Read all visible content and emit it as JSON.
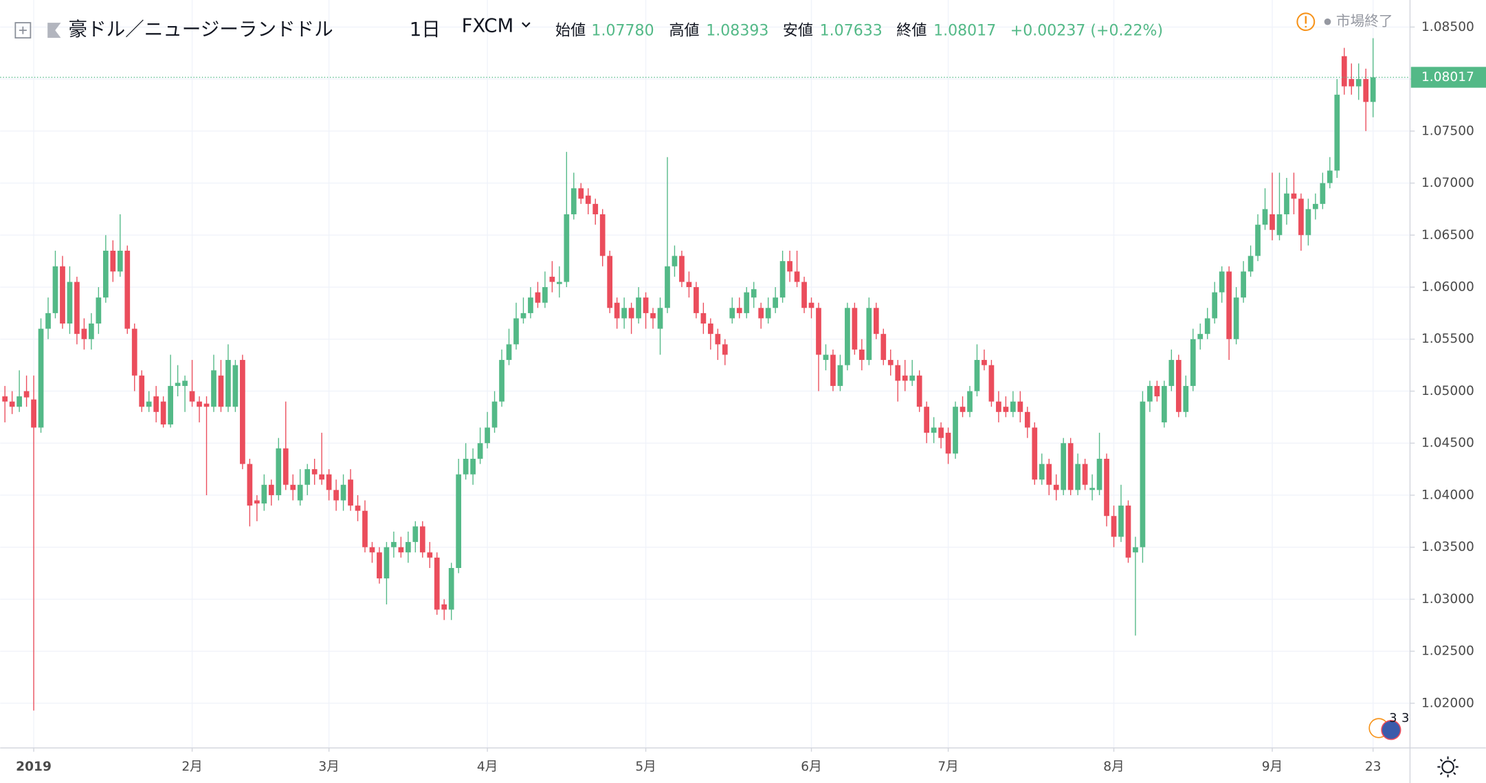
{
  "chart_data": {
    "type": "candlestick",
    "title": "豪ドル／ニュージーランドドル",
    "interval": "1日",
    "source": "FXCM",
    "header": {
      "open_label": "始値",
      "open": "1.07780",
      "high_label": "高値",
      "high": "1.08393",
      "low_label": "安値",
      "low": "1.07633",
      "close_label": "終値",
      "close": "1.08017",
      "change": "+0.00237 (+0.22%)"
    },
    "status": "市場終了",
    "event_badges": [
      "3",
      "3"
    ],
    "up_color": "#53b987",
    "down_color": "#eb4d5c",
    "grid": true,
    "ylim": [
      1.0157,
      1.0876
    ],
    "yticks": [
      {
        "value": 1.02,
        "label": "1.02000"
      },
      {
        "value": 1.025,
        "label": "1.02500"
      },
      {
        "value": 1.03,
        "label": "1.03000"
      },
      {
        "value": 1.035,
        "label": "1.03500"
      },
      {
        "value": 1.04,
        "label": "1.04000"
      },
      {
        "value": 1.045,
        "label": "1.04500"
      },
      {
        "value": 1.05,
        "label": "1.05000"
      },
      {
        "value": 1.055,
        "label": "1.05500"
      },
      {
        "value": 1.06,
        "label": "1.06000"
      },
      {
        "value": 1.065,
        "label": "1.06500"
      },
      {
        "value": 1.07,
        "label": "1.07000"
      },
      {
        "value": 1.075,
        "label": "1.07500"
      },
      {
        "value": 1.08,
        "label": "1.08000"
      },
      {
        "value": 1.085,
        "label": "1.08500"
      }
    ],
    "categories": [
      null,
      null,
      null,
      null,
      "2019",
      null,
      null,
      null,
      null,
      null,
      null,
      null,
      null,
      null,
      null,
      null,
      null,
      null,
      null,
      null,
      null,
      null,
      null,
      null,
      null,
      null,
      "2月",
      null,
      null,
      null,
      null,
      null,
      null,
      null,
      null,
      null,
      null,
      null,
      null,
      null,
      null,
      null,
      null,
      null,
      null,
      "3月",
      null,
      null,
      null,
      null,
      null,
      null,
      null,
      null,
      null,
      null,
      null,
      null,
      null,
      null,
      null,
      null,
      null,
      null,
      null,
      null,
      null,
      "4月",
      null,
      null,
      null,
      null,
      null,
      null,
      null,
      null,
      null,
      null,
      null,
      null,
      null,
      null,
      null,
      null,
      null,
      null,
      null,
      null,
      null,
      "5月",
      null,
      null,
      null,
      null,
      null,
      null,
      null,
      null,
      null,
      null,
      null,
      null,
      null,
      null,
      null,
      null,
      null,
      null,
      null,
      null,
      null,
      null,
      "6月",
      null,
      null,
      null,
      null,
      null,
      null,
      null,
      null,
      null,
      null,
      null,
      null,
      null,
      null,
      null,
      null,
      null,
      null,
      "7月",
      null,
      null,
      null,
      null,
      null,
      null,
      null,
      null,
      null,
      null,
      null,
      null,
      null,
      null,
      null,
      null,
      null,
      null,
      null,
      null,
      null,
      null,
      "8月",
      null,
      null,
      null,
      null,
      null,
      null,
      null,
      null,
      null,
      null,
      null,
      null,
      null,
      null,
      null,
      null,
      null,
      null,
      null,
      null,
      null,
      "9月",
      null,
      null,
      null,
      null,
      null,
      null,
      null,
      null,
      null,
      null,
      null,
      null,
      null,
      "23"
    ],
    "open": [
      1.0495,
      1.049,
      1.0485,
      1.05,
      1.0492,
      1.0465,
      1.056,
      1.0575,
      1.062,
      1.0565,
      1.0605,
      1.056,
      1.055,
      1.0565,
      1.059,
      1.0635,
      1.0615,
      1.0635,
      1.056,
      1.0515,
      1.0485,
      1.0495,
      1.049,
      1.0468,
      1.0505,
      1.0505,
      1.05,
      1.049,
      1.0488,
      1.0485,
      1.0515,
      1.0485,
      1.0485,
      1.053,
      1.043,
      1.0395,
      1.0392,
      1.041,
      1.04,
      1.0445,
      1.041,
      1.0395,
      1.041,
      1.0425,
      1.042,
      1.042,
      1.0405,
      1.0395,
      1.0415,
      1.039,
      1.0385,
      1.035,
      1.0345,
      1.032,
      1.035,
      1.035,
      1.0345,
      1.0355,
      1.037,
      1.0345,
      1.034,
      1.0295,
      1.029,
      1.033,
      1.042,
      1.042,
      1.0435,
      1.045,
      1.0465,
      1.049,
      1.053,
      1.0545,
      1.057,
      1.0575,
      1.0595,
      1.0585,
      1.061,
      1.0603,
      1.0605,
      1.067,
      1.0695,
      1.0688,
      1.068,
      1.067,
      1.063,
      1.0585,
      1.057,
      1.058,
      1.057,
      1.059,
      1.0575,
      1.056,
      1.058,
      1.062,
      1.063,
      1.0605,
      1.06,
      1.0575,
      1.0565,
      1.0555,
      1.0545,
      1.057,
      1.058,
      1.0575,
      1.059,
      1.058,
      1.057,
      1.058,
      1.059,
      1.0625,
      1.0615,
      1.0605,
      1.0585,
      1.058,
      1.053,
      1.0535,
      1.0505,
      1.0525,
      1.058,
      1.054,
      1.053,
      1.058,
      1.0555,
      1.053,
      1.0525,
      1.0515,
      1.051,
      1.0515,
      1.0485,
      1.046,
      1.0465,
      1.046,
      1.044,
      1.0485,
      1.048,
      1.05,
      1.053,
      1.0525,
      1.049,
      1.0485,
      1.048,
      1.049,
      1.048,
      1.0465,
      1.0415,
      1.043,
      1.041,
      1.0405,
      1.045,
      1.0405,
      1.043,
      1.0405,
      1.0405,
      1.0435,
      1.038,
      1.036,
      1.039,
      1.0345,
      1.035,
      1.049,
      1.0505,
      1.047,
      1.0505,
      1.053,
      1.048,
      1.0505,
      1.055,
      1.0555,
      1.057,
      1.0595,
      1.0615,
      1.055,
      1.059,
      1.0615,
      1.063,
      1.066,
      1.067,
      1.065,
      1.067,
      1.069,
      1.0685,
      1.065,
      1.0675,
      1.068,
      1.07,
      1.0712,
      1.0822,
      1.08,
      1.0793,
      1.08,
      1.0778
    ],
    "high": [
      1.0505,
      1.05,
      1.052,
      1.0515,
      1.0515,
      1.057,
      1.059,
      1.0635,
      1.063,
      1.062,
      1.061,
      1.057,
      1.0575,
      1.06,
      1.065,
      1.0645,
      1.067,
      1.064,
      1.0565,
      1.052,
      1.05,
      1.0505,
      1.0495,
      1.0535,
      1.0525,
      1.0515,
      1.053,
      1.0495,
      1.0495,
      1.0535,
      1.053,
      1.0545,
      1.053,
      1.0535,
      1.0435,
      1.04,
      1.042,
      1.0415,
      1.0455,
      1.049,
      1.042,
      1.0425,
      1.043,
      1.0435,
      1.046,
      1.0425,
      1.0415,
      1.042,
      1.0425,
      1.04,
      1.0395,
      1.0355,
      1.035,
      1.0355,
      1.0365,
      1.036,
      1.0365,
      1.0375,
      1.0375,
      1.0355,
      1.0345,
      1.03,
      1.0335,
      1.0435,
      1.045,
      1.0445,
      1.0465,
      1.048,
      1.05,
      1.054,
      1.056,
      1.0585,
      1.059,
      1.06,
      1.0605,
      1.0615,
      1.0625,
      1.062,
      1.073,
      1.071,
      1.07,
      1.0695,
      1.0685,
      1.0675,
      1.0635,
      1.059,
      1.059,
      1.0585,
      1.06,
      1.0595,
      1.058,
      1.059,
      1.0725,
      1.064,
      1.0635,
      1.0615,
      1.0605,
      1.0585,
      1.057,
      1.056,
      1.055,
      1.059,
      1.059,
      1.06,
      1.0605,
      1.0585,
      1.059,
      1.06,
      1.0635,
      1.0635,
      1.0635,
      1.061,
      1.059,
      1.0585,
      1.0545,
      1.054,
      1.0535,
      1.0585,
      1.0585,
      1.055,
      1.059,
      1.0585,
      1.056,
      1.054,
      1.053,
      1.053,
      1.053,
      1.052,
      1.049,
      1.0475,
      1.047,
      1.0465,
      1.049,
      1.0495,
      1.0505,
      1.0545,
      1.054,
      1.053,
      1.05,
      1.0495,
      1.05,
      1.05,
      1.0485,
      1.047,
      1.044,
      1.0435,
      1.042,
      1.0455,
      1.0455,
      1.044,
      1.0435,
      1.042,
      1.046,
      1.044,
      1.039,
      1.041,
      1.0395,
      1.036,
      1.05,
      1.051,
      1.051,
      1.051,
      1.054,
      1.0535,
      1.0515,
      1.056,
      1.0565,
      1.058,
      1.0605,
      1.062,
      1.062,
      1.06,
      1.0625,
      1.064,
      1.067,
      1.0695,
      1.071,
      1.071,
      1.0705,
      1.071,
      1.069,
      1.0685,
      1.069,
      1.071,
      1.0725,
      1.08,
      1.083,
      1.0815,
      1.0815,
      1.081,
      1.08393
    ],
    "low": [
      1.047,
      1.0478,
      1.048,
      1.0485,
      1.0193,
      1.046,
      1.055,
      1.057,
      1.056,
      1.0555,
      1.0545,
      1.054,
      1.054,
      1.0555,
      1.0585,
      1.0605,
      1.061,
      1.0555,
      1.05,
      1.048,
      1.048,
      1.047,
      1.0465,
      1.0465,
      1.0495,
      1.048,
      1.0485,
      1.047,
      1.04,
      1.048,
      1.048,
      1.048,
      1.048,
      1.0425,
      1.037,
      1.0375,
      1.0385,
      1.039,
      1.0395,
      1.0405,
      1.0395,
      1.039,
      1.04,
      1.041,
      1.041,
      1.0395,
      1.0385,
      1.0385,
      1.0385,
      1.0375,
      1.0345,
      1.0335,
      1.0315,
      1.0295,
      1.034,
      1.034,
      1.0335,
      1.0345,
      1.034,
      1.033,
      1.0285,
      1.028,
      1.028,
      1.0325,
      1.0415,
      1.041,
      1.043,
      1.0445,
      1.046,
      1.0485,
      1.0525,
      1.054,
      1.0565,
      1.057,
      1.058,
      1.058,
      1.0595,
      1.059,
      1.06,
      1.0665,
      1.068,
      1.067,
      1.066,
      1.062,
      1.0575,
      1.056,
      1.056,
      1.0555,
      1.0565,
      1.056,
      1.056,
      1.0535,
      1.0575,
      1.061,
      1.06,
      1.059,
      1.057,
      1.0555,
      1.054,
      1.053,
      1.0525,
      1.0565,
      1.057,
      1.057,
      1.058,
      1.056,
      1.0565,
      1.0575,
      1.0585,
      1.0605,
      1.06,
      1.0575,
      1.057,
      1.05,
      1.052,
      1.05,
      1.05,
      1.052,
      1.0535,
      1.052,
      1.0525,
      1.055,
      1.0525,
      1.0515,
      1.049,
      1.05,
      1.0505,
      1.048,
      1.045,
      1.045,
      1.0445,
      1.043,
      1.0435,
      1.0475,
      1.0475,
      1.0495,
      1.052,
      1.0485,
      1.047,
      1.0475,
      1.0475,
      1.047,
      1.0455,
      1.041,
      1.041,
      1.04,
      1.0395,
      1.04,
      1.04,
      1.04,
      1.0405,
      1.0395,
      1.04,
      1.037,
      1.035,
      1.0355,
      1.0335,
      1.0265,
      1.0335,
      1.048,
      1.049,
      1.0465,
      1.05,
      1.0475,
      1.0475,
      1.05,
      1.054,
      1.055,
      1.0565,
      1.0585,
      1.053,
      1.0545,
      1.0585,
      1.061,
      1.0625,
      1.0655,
      1.0645,
      1.0645,
      1.066,
      1.067,
      1.0635,
      1.064,
      1.0665,
      1.0675,
      1.0695,
      1.0705,
      1.0785,
      1.0785,
      1.078,
      1.075,
      1.07633
    ],
    "close": [
      1.049,
      1.0485,
      1.0495,
      1.0494,
      1.0465,
      1.056,
      1.0575,
      1.062,
      1.0565,
      1.0605,
      1.0555,
      1.055,
      1.0565,
      1.059,
      1.0635,
      1.0615,
      1.0635,
      1.056,
      1.0515,
      1.0485,
      1.049,
      1.048,
      1.0468,
      1.0505,
      1.0508,
      1.051,
      1.049,
      1.0485,
      1.0485,
      1.052,
      1.0485,
      1.053,
      1.0525,
      1.043,
      1.039,
      1.0392,
      1.041,
      1.04,
      1.0445,
      1.041,
      1.0405,
      1.041,
      1.0425,
      1.042,
      1.0415,
      1.0405,
      1.0395,
      1.041,
      1.039,
      1.0385,
      1.035,
      1.0345,
      1.032,
      1.035,
      1.0355,
      1.0345,
      1.0355,
      1.037,
      1.0345,
      1.034,
      1.029,
      1.029,
      1.033,
      1.042,
      1.0435,
      1.0435,
      1.045,
      1.0465,
      1.049,
      1.053,
      1.0545,
      1.057,
      1.0575,
      1.059,
      1.0585,
      1.06,
      1.0605,
      1.0605,
      1.067,
      1.0695,
      1.0685,
      1.068,
      1.067,
      1.063,
      1.058,
      1.057,
      1.058,
      1.057,
      1.059,
      1.0575,
      1.057,
      1.058,
      1.062,
      1.063,
      1.0605,
      1.06,
      1.0575,
      1.0565,
      1.0555,
      1.0545,
      1.0535,
      1.058,
      1.0575,
      1.0595,
      1.0598,
      1.057,
      1.058,
      1.059,
      1.0625,
      1.0615,
      1.0605,
      1.058,
      1.058,
      1.0535,
      1.0535,
      1.0505,
      1.0525,
      1.058,
      1.054,
      1.053,
      1.058,
      1.0555,
      1.053,
      1.0525,
      1.051,
      1.051,
      1.0515,
      1.0485,
      1.046,
      1.0465,
      1.0455,
      1.044,
      1.0485,
      1.048,
      1.05,
      1.053,
      1.0525,
      1.049,
      1.048,
      1.048,
      1.049,
      1.048,
      1.0465,
      1.0415,
      1.043,
      1.041,
      1.0405,
      1.045,
      1.0405,
      1.043,
      1.041,
      1.0407,
      1.0435,
      1.038,
      1.036,
      1.039,
      1.034,
      1.035,
      1.049,
      1.0505,
      1.0495,
      1.0505,
      1.053,
      1.048,
      1.0505,
      1.055,
      1.0555,
      1.057,
      1.0595,
      1.0615,
      1.055,
      1.059,
      1.0615,
      1.063,
      1.066,
      1.0675,
      1.0655,
      1.067,
      1.069,
      1.0685,
      1.065,
      1.0675,
      1.068,
      1.07,
      1.0712,
      1.0785,
      1.0793,
      1.0793,
      1.08,
      1.0778,
      1.08017
    ]
  }
}
